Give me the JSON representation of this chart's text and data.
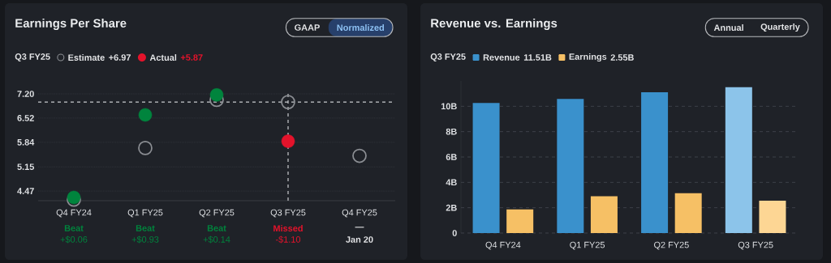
{
  "chart_data": [
    {
      "type": "scatter",
      "title": "Earnings Per Share",
      "subtitle": "Q3 FY25",
      "categories": [
        "Q4 FY24",
        "Q1 FY25",
        "Q2 FY25",
        "Q3 FY25",
        "Q4 FY25"
      ],
      "series": [
        {
          "name": "Estimate",
          "color": "#8b8e93",
          "values": [
            4.23,
            5.68,
            7.03,
            6.97,
            5.46
          ]
        },
        {
          "name": "Actual",
          "color": "#e3132b",
          "colors": [
            "#00843d",
            "#00843d",
            "#00843d",
            "#e3132b",
            null
          ],
          "values": [
            4.29,
            6.61,
            7.17,
            5.87,
            null
          ]
        }
      ],
      "ylim": [
        4.2,
        7.2
      ],
      "yticks": [
        4.47,
        5.15,
        5.84,
        6.52,
        {
          "value": 7.2,
          "label": "7.20"
        }
      ],
      "ref_lines": [
        {
          "axis": "y",
          "value": 6.97
        },
        {
          "axis": "x",
          "value": "Q3 FY25"
        }
      ],
      "grid": "y",
      "legend": "top left",
      "marker": "circle",
      "annotations": [
        "GAAP",
        "Normalized",
        "+6.97",
        "+5.87",
        "Beat",
        "+$0.06",
        "Beat",
        "+$0.93",
        "Beat",
        "+$0.14",
        "Missed",
        "-$1.10",
        "—",
        "Jan 20"
      ]
    },
    {
      "type": "bar",
      "title": "Revenue vs. Earnings",
      "subtitle": "Q3 FY25",
      "categories": [
        "Q4 FY24",
        "Q1 FY25",
        "Q2 FY25",
        "Q3 FY25"
      ],
      "series": [
        {
          "name": "Revenue",
          "color": "#3a91cc",
          "colors": [
            "#3a91cc",
            "#3a91cc",
            "#3a91cc",
            "#8cc4ea"
          ],
          "values": [
            10.26,
            10.58,
            11.11,
            11.51
          ]
        },
        {
          "name": "Earnings",
          "color": "#f6c065",
          "colors": [
            "#f6c065",
            "#f6c065",
            "#f6c065",
            "#fdd694"
          ],
          "values": [
            1.86,
            2.91,
            3.14,
            2.55
          ]
        }
      ],
      "ylim": [
        0,
        12
      ],
      "yticks": [
        0,
        {
          "value": 2,
          "label": "2B"
        },
        {
          "value": 4,
          "label": "4B"
        },
        {
          "value": 6,
          "label": "6B"
        },
        {
          "value": 8,
          "label": "8B"
        },
        {
          "value": 10,
          "label": "10B"
        }
      ],
      "grid": "y",
      "legend": "top left",
      "annotations": [
        "Annual",
        "Quarterly",
        "11.51B",
        "2.55B"
      ]
    }
  ]
}
